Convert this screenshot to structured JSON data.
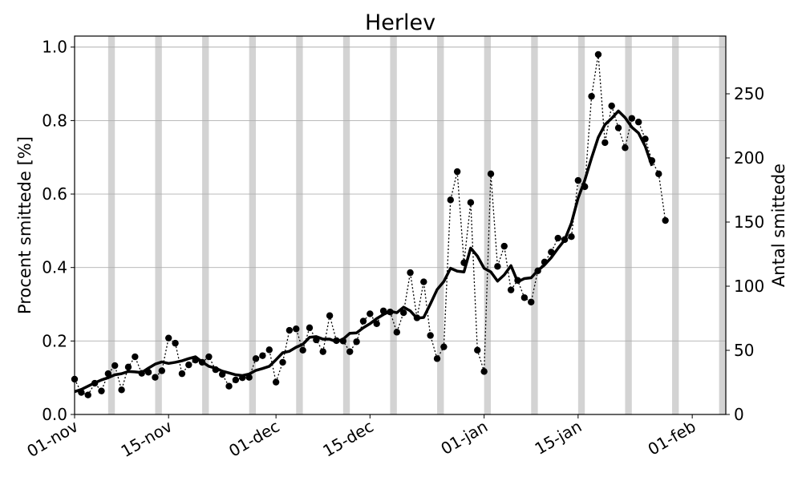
{
  "chart_data": {
    "type": "line",
    "title": "Herlev",
    "ylabel": "Procent smittede [%]",
    "y2label": "Antal smittede",
    "ylim": [
      0,
      1.03
    ],
    "y2lim": [
      0,
      295
    ],
    "xlim": [
      "2020-11-01",
      "2021-02-06"
    ],
    "yticks": [
      0.0,
      0.2,
      0.4,
      0.6,
      0.8,
      1.0
    ],
    "ytick_labels": [
      "0.0",
      "0.2",
      "0.4",
      "0.6",
      "0.8",
      "1.0"
    ],
    "y2ticks": [
      0,
      50,
      100,
      150,
      200,
      250
    ],
    "y2tick_labels": [
      "0",
      "50",
      "100",
      "150",
      "200",
      "250"
    ],
    "xticks": [
      "2020-11-01",
      "2020-11-15",
      "2020-12-01",
      "2020-12-15",
      "2021-01-01",
      "2021-01-15",
      "2021-02-01"
    ],
    "xtick_labels": [
      "01-nov",
      "15-nov",
      "01-dec",
      "15-dec",
      "01-jan",
      "15-jan",
      "01-feb"
    ],
    "grid": "horizontal",
    "weekend_shading_color": "#d3d3d3",
    "weekend_starts": [
      "2020-11-06",
      "2020-11-13",
      "2020-11-20",
      "2020-11-27",
      "2020-12-04",
      "2020-12-11",
      "2020-12-18",
      "2020-12-25",
      "2021-01-01",
      "2021-01-08",
      "2021-01-15",
      "2021-01-22",
      "2021-01-29",
      "2021-02-05"
    ],
    "series": [
      {
        "style": "dotted-markers",
        "color": "#000000",
        "x": [
          "2020-11-01",
          "2020-11-02",
          "2020-11-03",
          "2020-11-04",
          "2020-11-05",
          "2020-11-06",
          "2020-11-07",
          "2020-11-08",
          "2020-11-09",
          "2020-11-10",
          "2020-11-11",
          "2020-11-12",
          "2020-11-13",
          "2020-11-14",
          "2020-11-15",
          "2020-11-16",
          "2020-11-17",
          "2020-11-18",
          "2020-11-19",
          "2020-11-20",
          "2020-11-21",
          "2020-11-22",
          "2020-11-23",
          "2020-11-24",
          "2020-11-25",
          "2020-11-26",
          "2020-11-27",
          "2020-11-28",
          "2020-11-29",
          "2020-11-30",
          "2020-12-01",
          "2020-12-02",
          "2020-12-03",
          "2020-12-04",
          "2020-12-05",
          "2020-12-06",
          "2020-12-07",
          "2020-12-08",
          "2020-12-09",
          "2020-12-10",
          "2020-12-11",
          "2020-12-12",
          "2020-12-13",
          "2020-12-14",
          "2020-12-15",
          "2020-12-16",
          "2020-12-17",
          "2020-12-18",
          "2020-12-19",
          "2020-12-20",
          "2020-12-21",
          "2020-12-22",
          "2020-12-23",
          "2020-12-24",
          "2020-12-25",
          "2020-12-26",
          "2020-12-27",
          "2020-12-28",
          "2020-12-29",
          "2020-12-30",
          "2020-12-31",
          "2021-01-01",
          "2021-01-02",
          "2021-01-03",
          "2021-01-04",
          "2021-01-05",
          "2021-01-06",
          "2021-01-07",
          "2021-01-08",
          "2021-01-09",
          "2021-01-10",
          "2021-01-11",
          "2021-01-12",
          "2021-01-13",
          "2021-01-14",
          "2021-01-15",
          "2021-01-16",
          "2021-01-17",
          "2021-01-18",
          "2021-01-19",
          "2021-01-20",
          "2021-01-21",
          "2021-01-22",
          "2021-01-23",
          "2021-01-24",
          "2021-01-25",
          "2021-01-26",
          "2021-01-27",
          "2021-01-28"
        ],
        "values": [
          0.096,
          0.06,
          0.053,
          0.085,
          0.064,
          0.111,
          0.133,
          0.067,
          0.129,
          0.157,
          0.112,
          0.115,
          0.101,
          0.119,
          0.208,
          0.194,
          0.111,
          0.135,
          0.148,
          0.142,
          0.157,
          0.122,
          0.109,
          0.077,
          0.094,
          0.1,
          0.101,
          0.152,
          0.16,
          0.176,
          0.088,
          0.142,
          0.229,
          0.233,
          0.175,
          0.236,
          0.203,
          0.171,
          0.269,
          0.201,
          0.2,
          0.171,
          0.198,
          0.254,
          0.274,
          0.247,
          0.282,
          0.279,
          0.224,
          0.277,
          0.386,
          0.263,
          0.361,
          0.215,
          0.152,
          0.184,
          0.584,
          0.661,
          0.413,
          0.577,
          0.175,
          0.117,
          0.655,
          0.403,
          0.458,
          0.339,
          0.365,
          0.318,
          0.306,
          0.391,
          0.415,
          0.442,
          0.48,
          0.476,
          0.484,
          0.637,
          0.62,
          0.866,
          0.98,
          0.74,
          0.84,
          0.78,
          0.726,
          0.806,
          0.796,
          0.75,
          0.691,
          0.655,
          0.528
        ]
      },
      {
        "style": "solid-thick",
        "color": "#000000",
        "x": [
          "2020-11-01",
          "2020-11-02",
          "2020-11-03",
          "2020-11-04",
          "2020-11-05",
          "2020-11-06",
          "2020-11-07",
          "2020-11-08",
          "2020-11-09",
          "2020-11-10",
          "2020-11-11",
          "2020-11-12",
          "2020-11-13",
          "2020-11-14",
          "2020-11-15",
          "2020-11-16",
          "2020-11-17",
          "2020-11-18",
          "2020-11-19",
          "2020-11-20",
          "2020-11-21",
          "2020-11-22",
          "2020-11-23",
          "2020-11-24",
          "2020-11-25",
          "2020-11-26",
          "2020-11-27",
          "2020-11-28",
          "2020-11-29",
          "2020-11-30",
          "2020-12-01",
          "2020-12-02",
          "2020-12-03",
          "2020-12-04",
          "2020-12-05",
          "2020-12-06",
          "2020-12-07",
          "2020-12-08",
          "2020-12-09",
          "2020-12-10",
          "2020-12-11",
          "2020-12-12",
          "2020-12-13",
          "2020-12-14",
          "2020-12-15",
          "2020-12-16",
          "2020-12-17",
          "2020-12-18",
          "2020-12-19",
          "2020-12-20",
          "2020-12-21",
          "2020-12-22",
          "2020-12-23",
          "2020-12-24",
          "2020-12-25",
          "2020-12-26",
          "2020-12-27",
          "2020-12-28",
          "2020-12-29",
          "2020-12-30",
          "2020-12-31",
          "2021-01-01",
          "2021-01-02",
          "2021-01-03",
          "2021-01-04",
          "2021-01-05",
          "2021-01-06",
          "2021-01-07",
          "2021-01-08",
          "2021-01-09",
          "2021-01-10",
          "2021-01-11",
          "2021-01-12",
          "2021-01-13",
          "2021-01-14",
          "2021-01-15",
          "2021-01-16",
          "2021-01-17",
          "2021-01-18",
          "2021-01-19",
          "2021-01-20",
          "2021-01-21",
          "2021-01-22",
          "2021-01-23",
          "2021-01-24",
          "2021-01-25",
          "2021-01-26"
        ],
        "values": [
          0.062,
          0.068,
          0.077,
          0.086,
          0.094,
          0.1,
          0.108,
          0.111,
          0.117,
          0.116,
          0.114,
          0.126,
          0.137,
          0.143,
          0.139,
          0.142,
          0.146,
          0.152,
          0.157,
          0.143,
          0.131,
          0.126,
          0.118,
          0.113,
          0.108,
          0.106,
          0.11,
          0.12,
          0.125,
          0.131,
          0.149,
          0.168,
          0.172,
          0.183,
          0.191,
          0.21,
          0.212,
          0.205,
          0.205,
          0.198,
          0.205,
          0.221,
          0.222,
          0.236,
          0.247,
          0.261,
          0.272,
          0.281,
          0.277,
          0.292,
          0.282,
          0.262,
          0.264,
          0.301,
          0.34,
          0.362,
          0.398,
          0.39,
          0.388,
          0.453,
          0.431,
          0.398,
          0.388,
          0.363,
          0.38,
          0.405,
          0.361,
          0.37,
          0.372,
          0.392,
          0.407,
          0.427,
          0.452,
          0.475,
          0.521,
          0.589,
          0.638,
          0.698,
          0.754,
          0.789,
          0.806,
          0.826,
          0.808,
          0.782,
          0.766,
          0.73,
          0.677
        ]
      }
    ]
  }
}
